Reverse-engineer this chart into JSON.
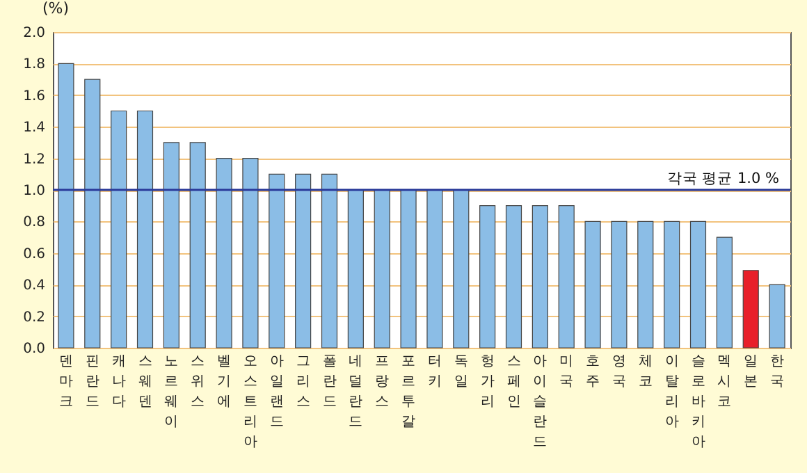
{
  "chart_data": {
    "type": "bar",
    "ylabel": "(%)",
    "categories": [
      "덴마크",
      "핀란드",
      "캐나다",
      "스웨덴",
      "노르웨이",
      "스위스",
      "벨기에",
      "오스트리아",
      "아일랜드",
      "그리스",
      "폴란드",
      "네덜란드",
      "프랑스",
      "포르투갈",
      "터키",
      "독일",
      "헝가리",
      "스페인",
      "아이슬란드",
      "미국",
      "호주",
      "영국",
      "체코",
      "이탈리아",
      "슬로바키아",
      "멕시코",
      "일본",
      "한국"
    ],
    "values": [
      1.8,
      1.7,
      1.5,
      1.5,
      1.3,
      1.3,
      1.2,
      1.2,
      1.1,
      1.1,
      1.1,
      1.0,
      1.0,
      1.0,
      1.0,
      1.0,
      0.9,
      0.9,
      0.9,
      0.9,
      0.8,
      0.8,
      0.8,
      0.8,
      0.8,
      0.7,
      0.49,
      0.4
    ],
    "colors": [
      "#8bbde6",
      "#8bbde6",
      "#8bbde6",
      "#8bbde6",
      "#8bbde6",
      "#8bbde6",
      "#8bbde6",
      "#8bbde6",
      "#8bbde6",
      "#8bbde6",
      "#8bbde6",
      "#8bbde6",
      "#8bbde6",
      "#8bbde6",
      "#8bbde6",
      "#8bbde6",
      "#8bbde6",
      "#8bbde6",
      "#8bbde6",
      "#8bbde6",
      "#8bbde6",
      "#8bbde6",
      "#8bbde6",
      "#8bbde6",
      "#8bbde6",
      "#8bbde6",
      "#e8202a",
      "#8bbde6"
    ],
    "ylim": [
      0,
      2
    ],
    "yticks": [
      {
        "value": 0,
        "label": "0.0"
      },
      0.2,
      0.4,
      0.6,
      0.8,
      {
        "value": 1,
        "label": "1.0"
      },
      1.2,
      1.4,
      1.6,
      1.8,
      {
        "value": 2,
        "label": "2.0"
      }
    ],
    "grid": "y",
    "ref_lines": [
      {
        "axis": "y",
        "value": 1.0,
        "label": "각국 평균 1.0 %",
        "color": "#2a3a9a"
      }
    ]
  }
}
